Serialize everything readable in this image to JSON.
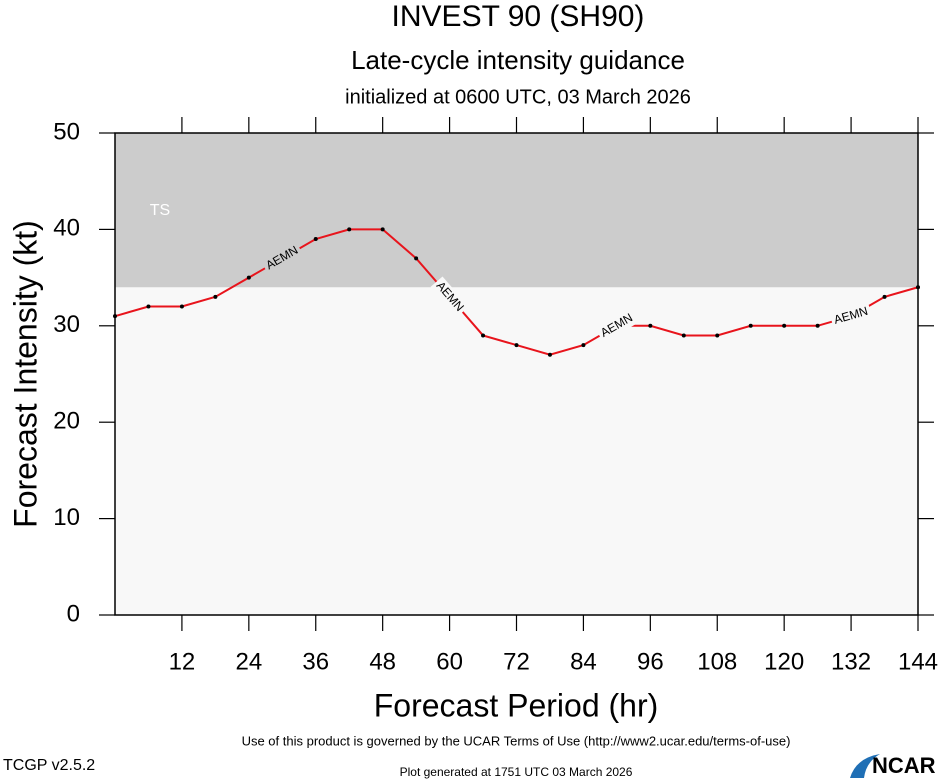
{
  "chart_data": {
    "type": "line",
    "title": "INVEST 90 (SH90)",
    "subtitle": "Late-cycle intensity guidance",
    "init_text": "initialized at 0600 UTC, 03 March 2026",
    "x_label": "Forecast Period (hr)",
    "y_label": "Forecast Intensity (kt)",
    "x": [
      0,
      6,
      12,
      18,
      24,
      30,
      36,
      42,
      48,
      54,
      60,
      66,
      72,
      78,
      84,
      90,
      96,
      102,
      108,
      114,
      120,
      126,
      132,
      138,
      144
    ],
    "series": [
      {
        "name": "AEMN",
        "color": "#e8141c",
        "values": [
          31,
          32,
          32,
          33,
          35,
          37,
          39,
          40,
          40,
          37,
          33,
          29,
          28,
          27,
          28,
          30,
          30,
          29,
          29,
          30,
          30,
          30,
          31,
          33,
          34
        ]
      }
    ],
    "bands": [
      {
        "label": "TS",
        "from": 34,
        "to": 50,
        "color": "#cccccc"
      }
    ],
    "background": "#f8f8f8",
    "xlim": [
      0,
      144
    ],
    "xticks": [
      12,
      24,
      36,
      48,
      60,
      72,
      84,
      96,
      108,
      120,
      132,
      144
    ],
    "ylim": [
      0,
      50
    ],
    "yticks": [
      0,
      10,
      20,
      30,
      40,
      50
    ],
    "footer": "Use of this product is governed by the UCAR Terms of Use (http://www2.ucar.edu/terms-of-use)",
    "version": "TCGP v2.5.2",
    "generated": "Plot generated at 1751 UTC   03 March 2026",
    "logo": "NCAR"
  }
}
